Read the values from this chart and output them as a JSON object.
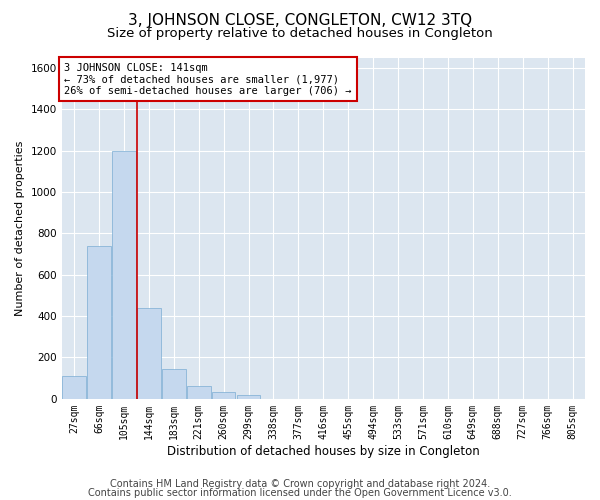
{
  "title": "3, JOHNSON CLOSE, CONGLETON, CW12 3TQ",
  "subtitle": "Size of property relative to detached houses in Congleton",
  "xlabel": "Distribution of detached houses by size in Congleton",
  "ylabel": "Number of detached properties",
  "categories": [
    "27sqm",
    "66sqm",
    "105sqm",
    "144sqm",
    "183sqm",
    "221sqm",
    "260sqm",
    "299sqm",
    "338sqm",
    "377sqm",
    "416sqm",
    "455sqm",
    "494sqm",
    "533sqm",
    "571sqm",
    "610sqm",
    "649sqm",
    "688sqm",
    "727sqm",
    "766sqm",
    "805sqm"
  ],
  "values": [
    110,
    740,
    1200,
    440,
    145,
    62,
    35,
    20,
    0,
    0,
    0,
    0,
    0,
    0,
    0,
    0,
    0,
    0,
    0,
    0,
    0
  ],
  "bar_color": "#c5d8ee",
  "bar_edge_color": "#7aadd4",
  "vline_color": "#cc0000",
  "vline_x_index": 3,
  "annotation_text": "3 JOHNSON CLOSE: 141sqm\n← 73% of detached houses are smaller (1,977)\n26% of semi-detached houses are larger (706) →",
  "ylim": [
    0,
    1650
  ],
  "yticks": [
    0,
    200,
    400,
    600,
    800,
    1000,
    1200,
    1400,
    1600
  ],
  "plot_bg_color": "#dce6f0",
  "footer_line1": "Contains HM Land Registry data © Crown copyright and database right 2024.",
  "footer_line2": "Contains public sector information licensed under the Open Government Licence v3.0.",
  "title_fontsize": 11,
  "subtitle_fontsize": 9.5,
  "footer_fontsize": 7,
  "annotation_fontsize": 7.5,
  "annotation_box_color": "#ffffff",
  "annotation_box_edge_color": "#cc0000",
  "ylabel_fontsize": 8,
  "xlabel_fontsize": 8.5,
  "tick_fontsize": 7,
  "ytick_fontsize": 7.5
}
